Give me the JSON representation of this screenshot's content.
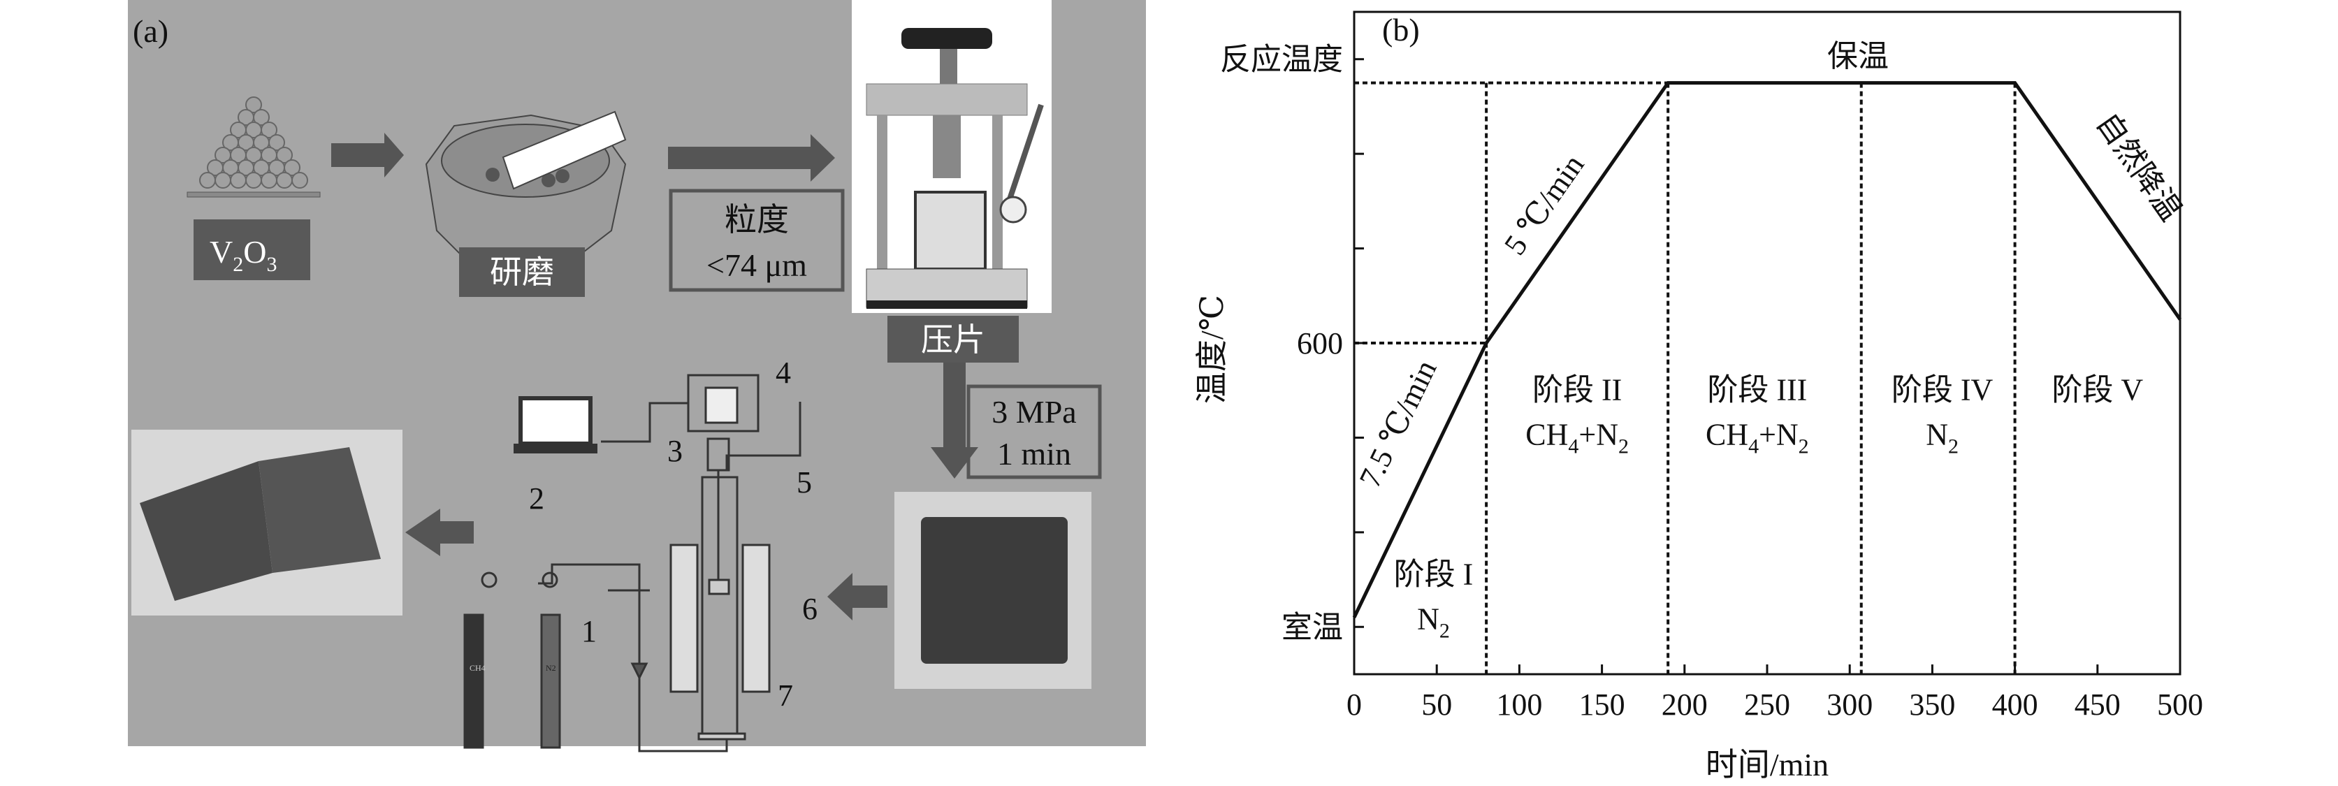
{
  "panel_a": {
    "label": "(a)",
    "v2o3": {
      "base": "V",
      "sub1": "2",
      "mid": "O",
      "sub2": "3"
    },
    "grinding": "研磨",
    "particle_size": {
      "line1": "粒度",
      "line2": "<74 μm"
    },
    "pressing": "压片",
    "press_conditions": {
      "line1": "3 MPa",
      "line2": "1 min"
    },
    "numbers": [
      "1",
      "2",
      "3",
      "4",
      "5",
      "6",
      "7"
    ],
    "cylinder_labels": [
      "CH4",
      "N2"
    ],
    "colors": {
      "background": "#a6a6a6",
      "box": "#595959",
      "arrow": "#555555"
    }
  },
  "chart_data": {
    "type": "line",
    "panel_label": "(b)",
    "xlabel": "时间/min",
    "ylabel": "温度/℃",
    "xlim": [
      0,
      500
    ],
    "ylim": [
      -100,
      1300
    ],
    "xticks": [
      0,
      50,
      100,
      150,
      200,
      250,
      300,
      350,
      400,
      450,
      500
    ],
    "yticks": [
      0,
      200,
      400,
      600,
      800,
      1000,
      1200
    ],
    "ytick_labels": [
      {
        "value": 0,
        "label": "室温"
      },
      {
        "value": 600,
        "label": "600"
      },
      {
        "value": 1200,
        "label": "反应温度"
      }
    ],
    "series": [
      {
        "x": [
          0,
          80,
          190,
          400,
          500
        ],
        "y": [
          20,
          600,
          1150,
          1150,
          650
        ]
      }
    ],
    "stage_boundaries": [
      80,
      190,
      307,
      400
    ],
    "reference_lines": [
      {
        "y": 600,
        "x_to": 80
      },
      {
        "y": 1150,
        "x_to": 190
      }
    ],
    "annotations": {
      "rate1": "7.5 ℃/min",
      "rate2": "5 ℃/min",
      "hold": "保温",
      "cooling": "自然降温",
      "stages": [
        {
          "name": "阶段 I",
          "gas": "N",
          "gas_sub": "2",
          "gas_tail": ""
        },
        {
          "name": "阶段 II",
          "gas": "CH",
          "gas_sub": "4",
          "gas_tail": "+N",
          "gas_sub2": "2"
        },
        {
          "name": "阶段 III",
          "gas": "CH",
          "gas_sub": "4",
          "gas_tail": "+N",
          "gas_sub2": "2"
        },
        {
          "name": "阶段 IV",
          "gas": "N",
          "gas_sub": "2",
          "gas_tail": ""
        },
        {
          "name": "阶段 V"
        }
      ]
    }
  }
}
